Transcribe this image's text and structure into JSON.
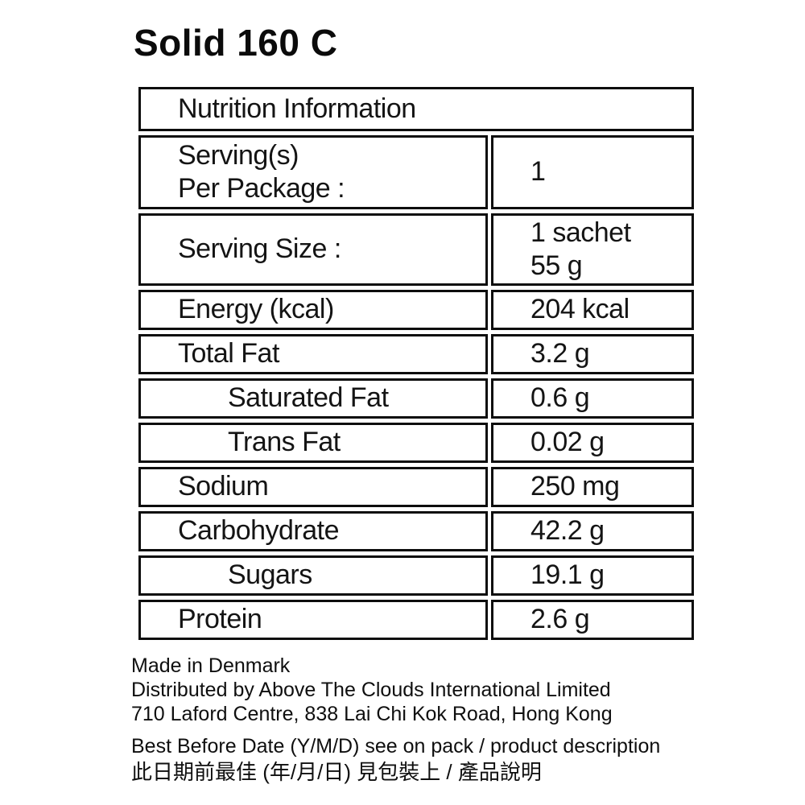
{
  "title": "Solid 160 C",
  "table": {
    "header": "Nutrition Information",
    "rows": [
      {
        "label": "Serving(s)\nPer Package :",
        "value": "1"
      },
      {
        "label": "Serving Size :",
        "value": "1 sachet\n55 g"
      },
      {
        "label": "Energy (kcal)",
        "value": "204 kcal"
      },
      {
        "label": "Total Fat",
        "value": "3.2 g"
      },
      {
        "label": "Saturated Fat",
        "value": "0.6 g"
      },
      {
        "label": "Trans Fat",
        "value": "0.02 g"
      },
      {
        "label": "Sodium",
        "value": "250 mg"
      },
      {
        "label": "Carbohydrate",
        "value": "42.2 g"
      },
      {
        "label": "Sugars",
        "value": "19.1 g"
      },
      {
        "label": "Protein",
        "value": "2.6 g"
      }
    ]
  },
  "footer": {
    "made_in": "Made in Denmark",
    "distributor": "Distributed by Above The Clouds International Limited",
    "address": "710 Laford Centre, 838 Lai Chi Kok Road, Hong Kong",
    "best_before_en": "Best Before Date (Y/M/D) see on pack / product description",
    "best_before_zh": "此日期前最佳 (年/月/日) 見包裝上 / 產品說明"
  },
  "colors": {
    "border": "#0d0d0d",
    "text": "#141414",
    "background": "#ffffff"
  }
}
